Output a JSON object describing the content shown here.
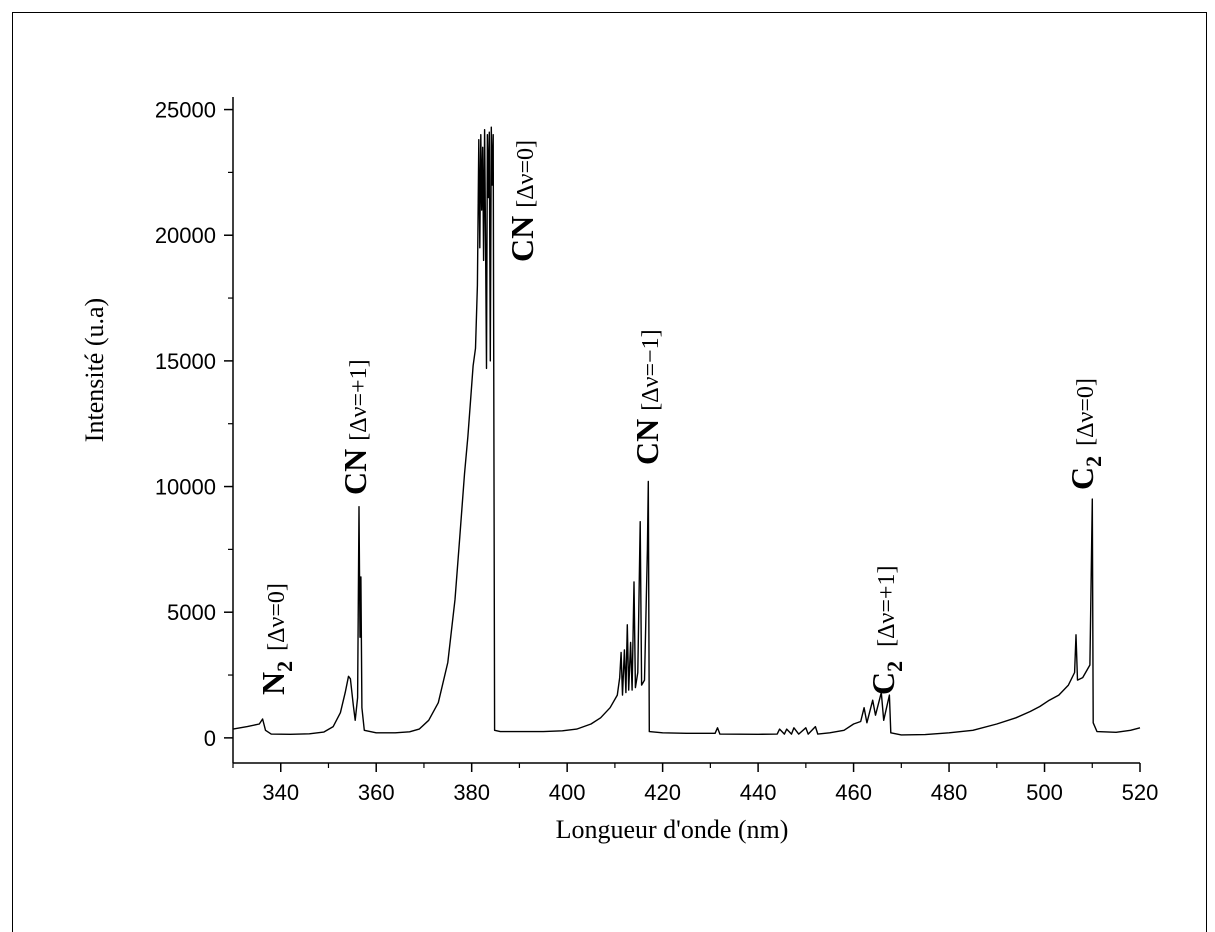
{
  "chart_data": {
    "type": "line",
    "title": "",
    "xlabel": "Longueur d'onde (nm)",
    "ylabel": "Intensité (u.a)",
    "xlim": [
      330,
      520
    ],
    "ylim": [
      -1000,
      25500
    ],
    "xticks": [
      340,
      360,
      380,
      400,
      420,
      440,
      460,
      480,
      500,
      520
    ],
    "yticks": [
      0,
      5000,
      10000,
      15000,
      20000,
      25000
    ],
    "grid": false,
    "legend": "none",
    "series": [
      {
        "points": [
          [
            330,
            350
          ],
          [
            333,
            450
          ],
          [
            335.5,
            550
          ],
          [
            336.2,
            750
          ],
          [
            336.8,
            300
          ],
          [
            338,
            150
          ],
          [
            342,
            140
          ],
          [
            346,
            160
          ],
          [
            349,
            230
          ],
          [
            351,
            450
          ],
          [
            352.5,
            1000
          ],
          [
            353.5,
            1800
          ],
          [
            354.2,
            2450
          ],
          [
            354.6,
            2350
          ],
          [
            355.2,
            1300
          ],
          [
            355.6,
            700
          ],
          [
            356.1,
            1600
          ],
          [
            356.4,
            9200
          ],
          [
            356.6,
            4000
          ],
          [
            356.8,
            6400
          ],
          [
            357.0,
            1200
          ],
          [
            357.5,
            300
          ],
          [
            360,
            200
          ],
          [
            364,
            200
          ],
          [
            367,
            240
          ],
          [
            369,
            350
          ],
          [
            371,
            700
          ],
          [
            373,
            1400
          ],
          [
            375,
            3000
          ],
          [
            376.5,
            5500
          ],
          [
            377.5,
            8000
          ],
          [
            378.5,
            10500
          ],
          [
            379.2,
            12000
          ],
          [
            379.8,
            13500
          ],
          [
            380.3,
            14800
          ],
          [
            380.8,
            15500
          ],
          [
            381.2,
            18000
          ],
          [
            381.5,
            23800
          ],
          [
            381.7,
            19500
          ],
          [
            381.9,
            24000
          ],
          [
            382.1,
            21000
          ],
          [
            382.3,
            23500
          ],
          [
            382.5,
            19000
          ],
          [
            382.7,
            24200
          ],
          [
            382.9,
            20000
          ],
          [
            383.1,
            14700
          ],
          [
            383.3,
            24000
          ],
          [
            383.5,
            21500
          ],
          [
            383.7,
            24100
          ],
          [
            383.9,
            15000
          ],
          [
            384.1,
            24300
          ],
          [
            384.3,
            22000
          ],
          [
            384.5,
            24000
          ],
          [
            384.8,
            300
          ],
          [
            386,
            250
          ],
          [
            390,
            250
          ],
          [
            395,
            250
          ],
          [
            399,
            280
          ],
          [
            402,
            350
          ],
          [
            405,
            550
          ],
          [
            407,
            800
          ],
          [
            409,
            1200
          ],
          [
            410.5,
            1700
          ],
          [
            411.0,
            2400
          ],
          [
            411.3,
            3400
          ],
          [
            411.6,
            1700
          ],
          [
            412.0,
            3500
          ],
          [
            412.3,
            1800
          ],
          [
            412.6,
            4500
          ],
          [
            412.9,
            1900
          ],
          [
            413.3,
            3800
          ],
          [
            413.6,
            1900
          ],
          [
            414.0,
            6200
          ],
          [
            414.3,
            2000
          ],
          [
            414.8,
            2600
          ],
          [
            415.3,
            8600
          ],
          [
            415.6,
            2100
          ],
          [
            416.2,
            2300
          ],
          [
            416.8,
            7500
          ],
          [
            417.0,
            10200
          ],
          [
            417.2,
            250
          ],
          [
            420,
            200
          ],
          [
            425,
            180
          ],
          [
            431,
            180
          ],
          [
            431.5,
            400
          ],
          [
            432,
            150
          ],
          [
            440,
            140
          ],
          [
            444,
            150
          ],
          [
            444.5,
            350
          ],
          [
            445.5,
            150
          ],
          [
            446,
            350
          ],
          [
            447,
            150
          ],
          [
            447.5,
            400
          ],
          [
            448.5,
            150
          ],
          [
            450,
            400
          ],
          [
            450.5,
            150
          ],
          [
            452,
            450
          ],
          [
            452.5,
            150
          ],
          [
            455,
            200
          ],
          [
            458,
            300
          ],
          [
            460,
            550
          ],
          [
            461.5,
            650
          ],
          [
            462.2,
            1200
          ],
          [
            462.8,
            600
          ],
          [
            464,
            1500
          ],
          [
            464.6,
            900
          ],
          [
            465.8,
            1800
          ],
          [
            466.3,
            700
          ],
          [
            467.5,
            1700
          ],
          [
            467.8,
            200
          ],
          [
            470,
            120
          ],
          [
            475,
            130
          ],
          [
            480,
            200
          ],
          [
            485,
            300
          ],
          [
            490,
            550
          ],
          [
            494,
            800
          ],
          [
            497,
            1050
          ],
          [
            499,
            1250
          ],
          [
            501,
            1500
          ],
          [
            503,
            1700
          ],
          [
            505,
            2100
          ],
          [
            506.3,
            2600
          ],
          [
            506.6,
            4100
          ],
          [
            506.9,
            2300
          ],
          [
            508,
            2400
          ],
          [
            509.5,
            2900
          ],
          [
            510.0,
            9500
          ],
          [
            510.2,
            600
          ],
          [
            511,
            250
          ],
          [
            515,
            220
          ],
          [
            518,
            300
          ],
          [
            520,
            400
          ]
        ]
      }
    ],
    "annotations": [
      {
        "species": "N",
        "subscript": "2",
        "band": "[Δν=0]"
      },
      {
        "species": "CN",
        "subscript": "",
        "band": "[Δν=+1]"
      },
      {
        "species": "CN",
        "subscript": "",
        "band": "[Δν=0]"
      },
      {
        "species": "CN",
        "subscript": "",
        "band": "[Δν=−1]"
      },
      {
        "species": "C",
        "subscript": "2",
        "band": "[Δν=+1]"
      },
      {
        "species": "C",
        "subscript": "2",
        "band": "[Δν=0]"
      }
    ]
  }
}
